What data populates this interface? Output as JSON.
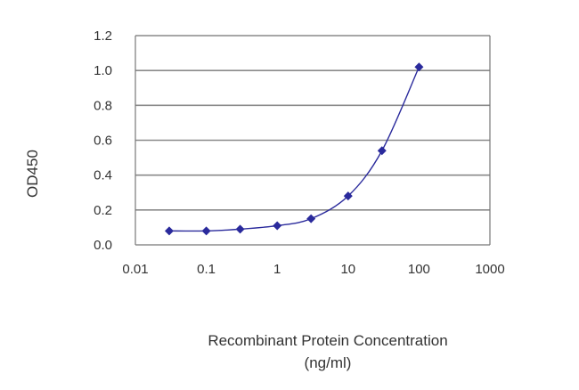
{
  "chart_data": {
    "type": "scatter",
    "title": "",
    "xlabel": "Recombinant Protein Concentration",
    "xlabel_unit": "(ng/ml)",
    "ylabel": "OD450",
    "x_scale": "log",
    "xlim": [
      0.01,
      1000
    ],
    "ylim": [
      0.0,
      1.2
    ],
    "x_ticks": [
      0.01,
      0.1,
      1,
      10,
      100,
      1000
    ],
    "x_tick_labels": [
      "0.01",
      "0.1",
      "1",
      "10",
      "100",
      "1000"
    ],
    "y_ticks": [
      0.0,
      0.2,
      0.4,
      0.6,
      0.8,
      1.0,
      1.2
    ],
    "y_tick_labels": [
      "0.0",
      "0.2",
      "0.4",
      "0.6",
      "0.8",
      "1.0",
      "1.2"
    ],
    "grid": "horizontal",
    "legend": "none",
    "series": [
      {
        "color": "#2a2a9c",
        "marker": "diamond",
        "curve": "smooth",
        "x": [
          0.03,
          0.1,
          0.3,
          1,
          3,
          10,
          30,
          100
        ],
        "y": [
          0.08,
          0.08,
          0.09,
          0.11,
          0.15,
          0.28,
          0.54,
          1.02
        ]
      }
    ]
  },
  "colors": {
    "background": "#ffffff",
    "gridline": "#8a8a8a",
    "frame": "#777777",
    "text": "#333333"
  }
}
